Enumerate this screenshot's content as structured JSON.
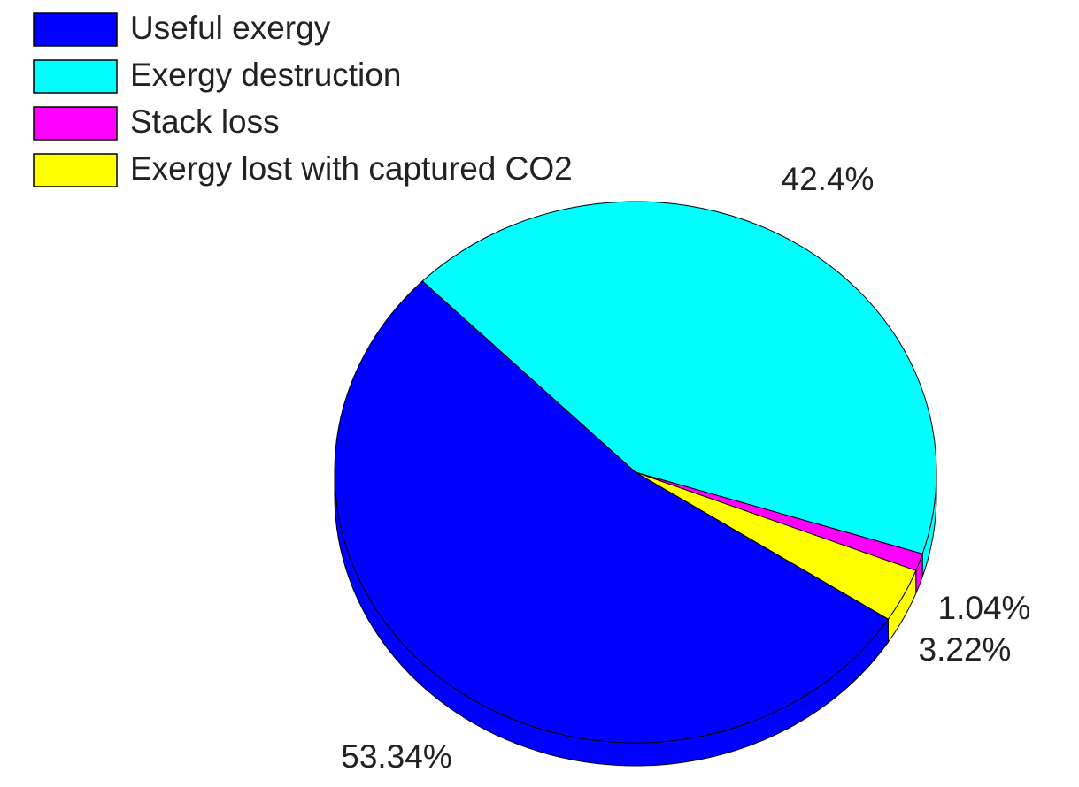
{
  "chart_data": {
    "type": "pie",
    "categories": [
      "Useful exergy",
      "Exergy destruction",
      "Stack loss",
      "Exergy lost with captured CO2"
    ],
    "values": [
      53.34,
      42.4,
      1.04,
      3.22
    ],
    "value_labels": [
      "53.34%",
      "42.4%",
      "1.04%",
      "3.22%"
    ],
    "colors": [
      "#0000ff",
      "#00ffff",
      "#ff00ff",
      "#ffff00"
    ],
    "legend": "upper left"
  }
}
